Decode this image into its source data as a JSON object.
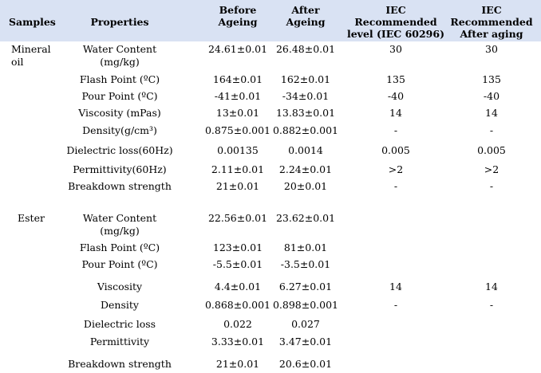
{
  "table": {
    "headers": [
      {
        "lines": [
          "Samples"
        ]
      },
      {
        "lines": [
          "Properties"
        ]
      },
      {
        "lines": [
          "Before",
          "Ageing"
        ]
      },
      {
        "lines": [
          "After",
          "Ageing"
        ]
      },
      {
        "lines": [
          "IEC",
          "Recommended",
          "level (IEC 60296)"
        ]
      },
      {
        "lines": [
          "IEC",
          "Recommended",
          "After aging"
        ]
      }
    ],
    "groups": [
      {
        "sample": [
          "Mineral",
          "oil"
        ],
        "rows": [
          {
            "property": [
              "Water Content",
              "(mg/kg)"
            ],
            "before": "24.61±0.01",
            "after": "26.48±0.01",
            "iec": "30",
            "iec_after": "30"
          },
          {
            "property": [
              "Flash Point (ºC)"
            ],
            "before": "164±0.01",
            "after": "162±0.01",
            "iec": "135",
            "iec_after": "135"
          },
          {
            "property": [
              "Pour Point (ºC)"
            ],
            "before": "-41±0.01",
            "after": "-34±0.01",
            "iec": "-40",
            "iec_after": "-40"
          },
          {
            "property": [
              "Viscosity (mPas)"
            ],
            "before": "13±0.01",
            "after": "13.83±0.01",
            "iec": "14",
            "iec_after": "14"
          },
          {
            "property": [
              "Density(g/cm³)"
            ],
            "before": "0.875±0.001",
            "after": "0.882±0.001",
            "iec": "-",
            "iec_after": "-"
          },
          {
            "property": [
              "Dielectric loss(60Hz)"
            ],
            "before": "0.00135",
            "after": "0.0014",
            "iec": "0.005",
            "iec_after": "0.005"
          },
          {
            "property": [
              "Permittivity(60Hz)"
            ],
            "before": "2.11±0.01",
            "after": "2.24±0.01",
            "iec": ">2",
            "iec_after": ">2"
          },
          {
            "property": [
              "Breakdown strength"
            ],
            "before": "21±0.01",
            "after": "20±0.01",
            "iec": "-",
            "iec_after": "-"
          }
        ]
      },
      {
        "sample": [
          "Ester"
        ],
        "rows": [
          {
            "property": [
              "Water Content",
              "(mg/kg)"
            ],
            "before": "22.56±0.01",
            "after": "23.62±0.01",
            "iec": "",
            "iec_after": ""
          },
          {
            "property": [
              "Flash Point (ºC)"
            ],
            "before": "123±0.01",
            "after": "81±0.01",
            "iec": "",
            "iec_after": ""
          },
          {
            "property": [
              "Pour Point (ºC)"
            ],
            "before": "-5.5±0.01",
            "after": "-3.5±0.01",
            "iec": "",
            "iec_after": ""
          },
          {
            "property": [
              "Viscosity"
            ],
            "before": "4.4±0.01",
            "after": "6.27±0.01",
            "iec": "14",
            "iec_after": "14"
          },
          {
            "property": [
              "Density"
            ],
            "before": "0.868±0.001",
            "after": "0.898±0.001",
            "iec": "-",
            "iec_after": "-"
          },
          {
            "property": [
              "Dielectric loss"
            ],
            "before": "0.022",
            "after": "0.027",
            "iec": "",
            "iec_after": ""
          },
          {
            "property": [
              "Permittivity"
            ],
            "before": "3.33±0.01",
            "after": "3.47±0.01",
            "iec": "",
            "iec_after": ""
          },
          {
            "property": [
              "Breakdown strength"
            ],
            "before": "21±0.01",
            "after": "20.6±0.01",
            "iec": "",
            "iec_after": ""
          }
        ]
      }
    ]
  }
}
